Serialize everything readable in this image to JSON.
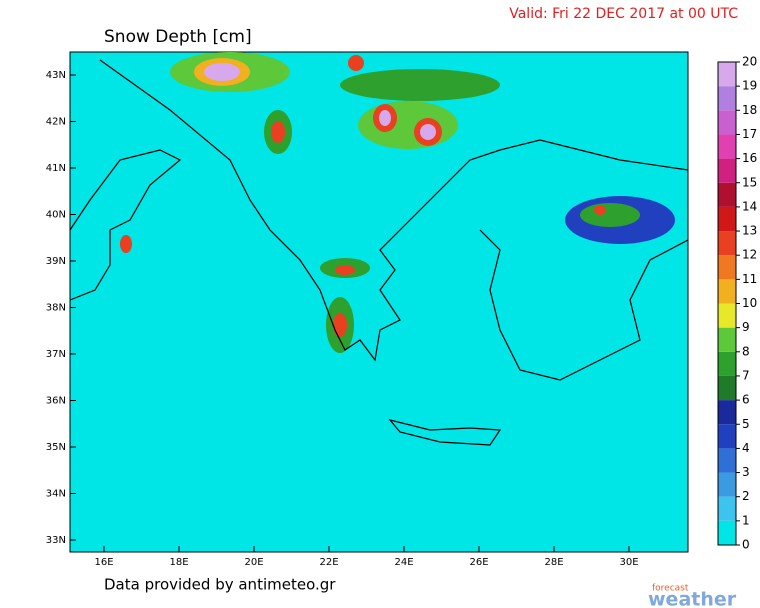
{
  "header": {
    "valid": "Valid: Fri 22 DEC 2017 at 00 UTC",
    "title": "Snow Depth  [cm]"
  },
  "map": {
    "lat_labels": [
      "43N",
      "42N",
      "41N",
      "40N",
      "39N",
      "38N",
      "37N",
      "36N",
      "35N",
      "34N",
      "33N"
    ],
    "lon_labels": [
      "16E",
      "18E",
      "20E",
      "22E",
      "24E",
      "26E",
      "28E",
      "30E"
    ]
  },
  "colorbar": {
    "ticks": [
      0,
      1,
      2,
      3,
      4,
      5,
      6,
      7,
      8,
      9,
      10,
      11,
      12,
      13,
      14,
      15,
      16,
      17,
      18,
      19,
      20
    ],
    "colors": [
      "#00e5e5",
      "#3cc4ee",
      "#3a9be3",
      "#2f6fd6",
      "#2040c0",
      "#1a2a9a",
      "#1f7a2a",
      "#2ea02e",
      "#5cc83a",
      "#e8e82a",
      "#f0b020",
      "#f07820",
      "#e84020",
      "#d01818",
      "#b01030",
      "#d02080",
      "#e040b0",
      "#c860d0",
      "#b080e0",
      "#d8a8ec"
    ]
  },
  "footer": "Data provided by antimeteo.gr",
  "logo": {
    "small": "forecast",
    "big": "weather"
  }
}
